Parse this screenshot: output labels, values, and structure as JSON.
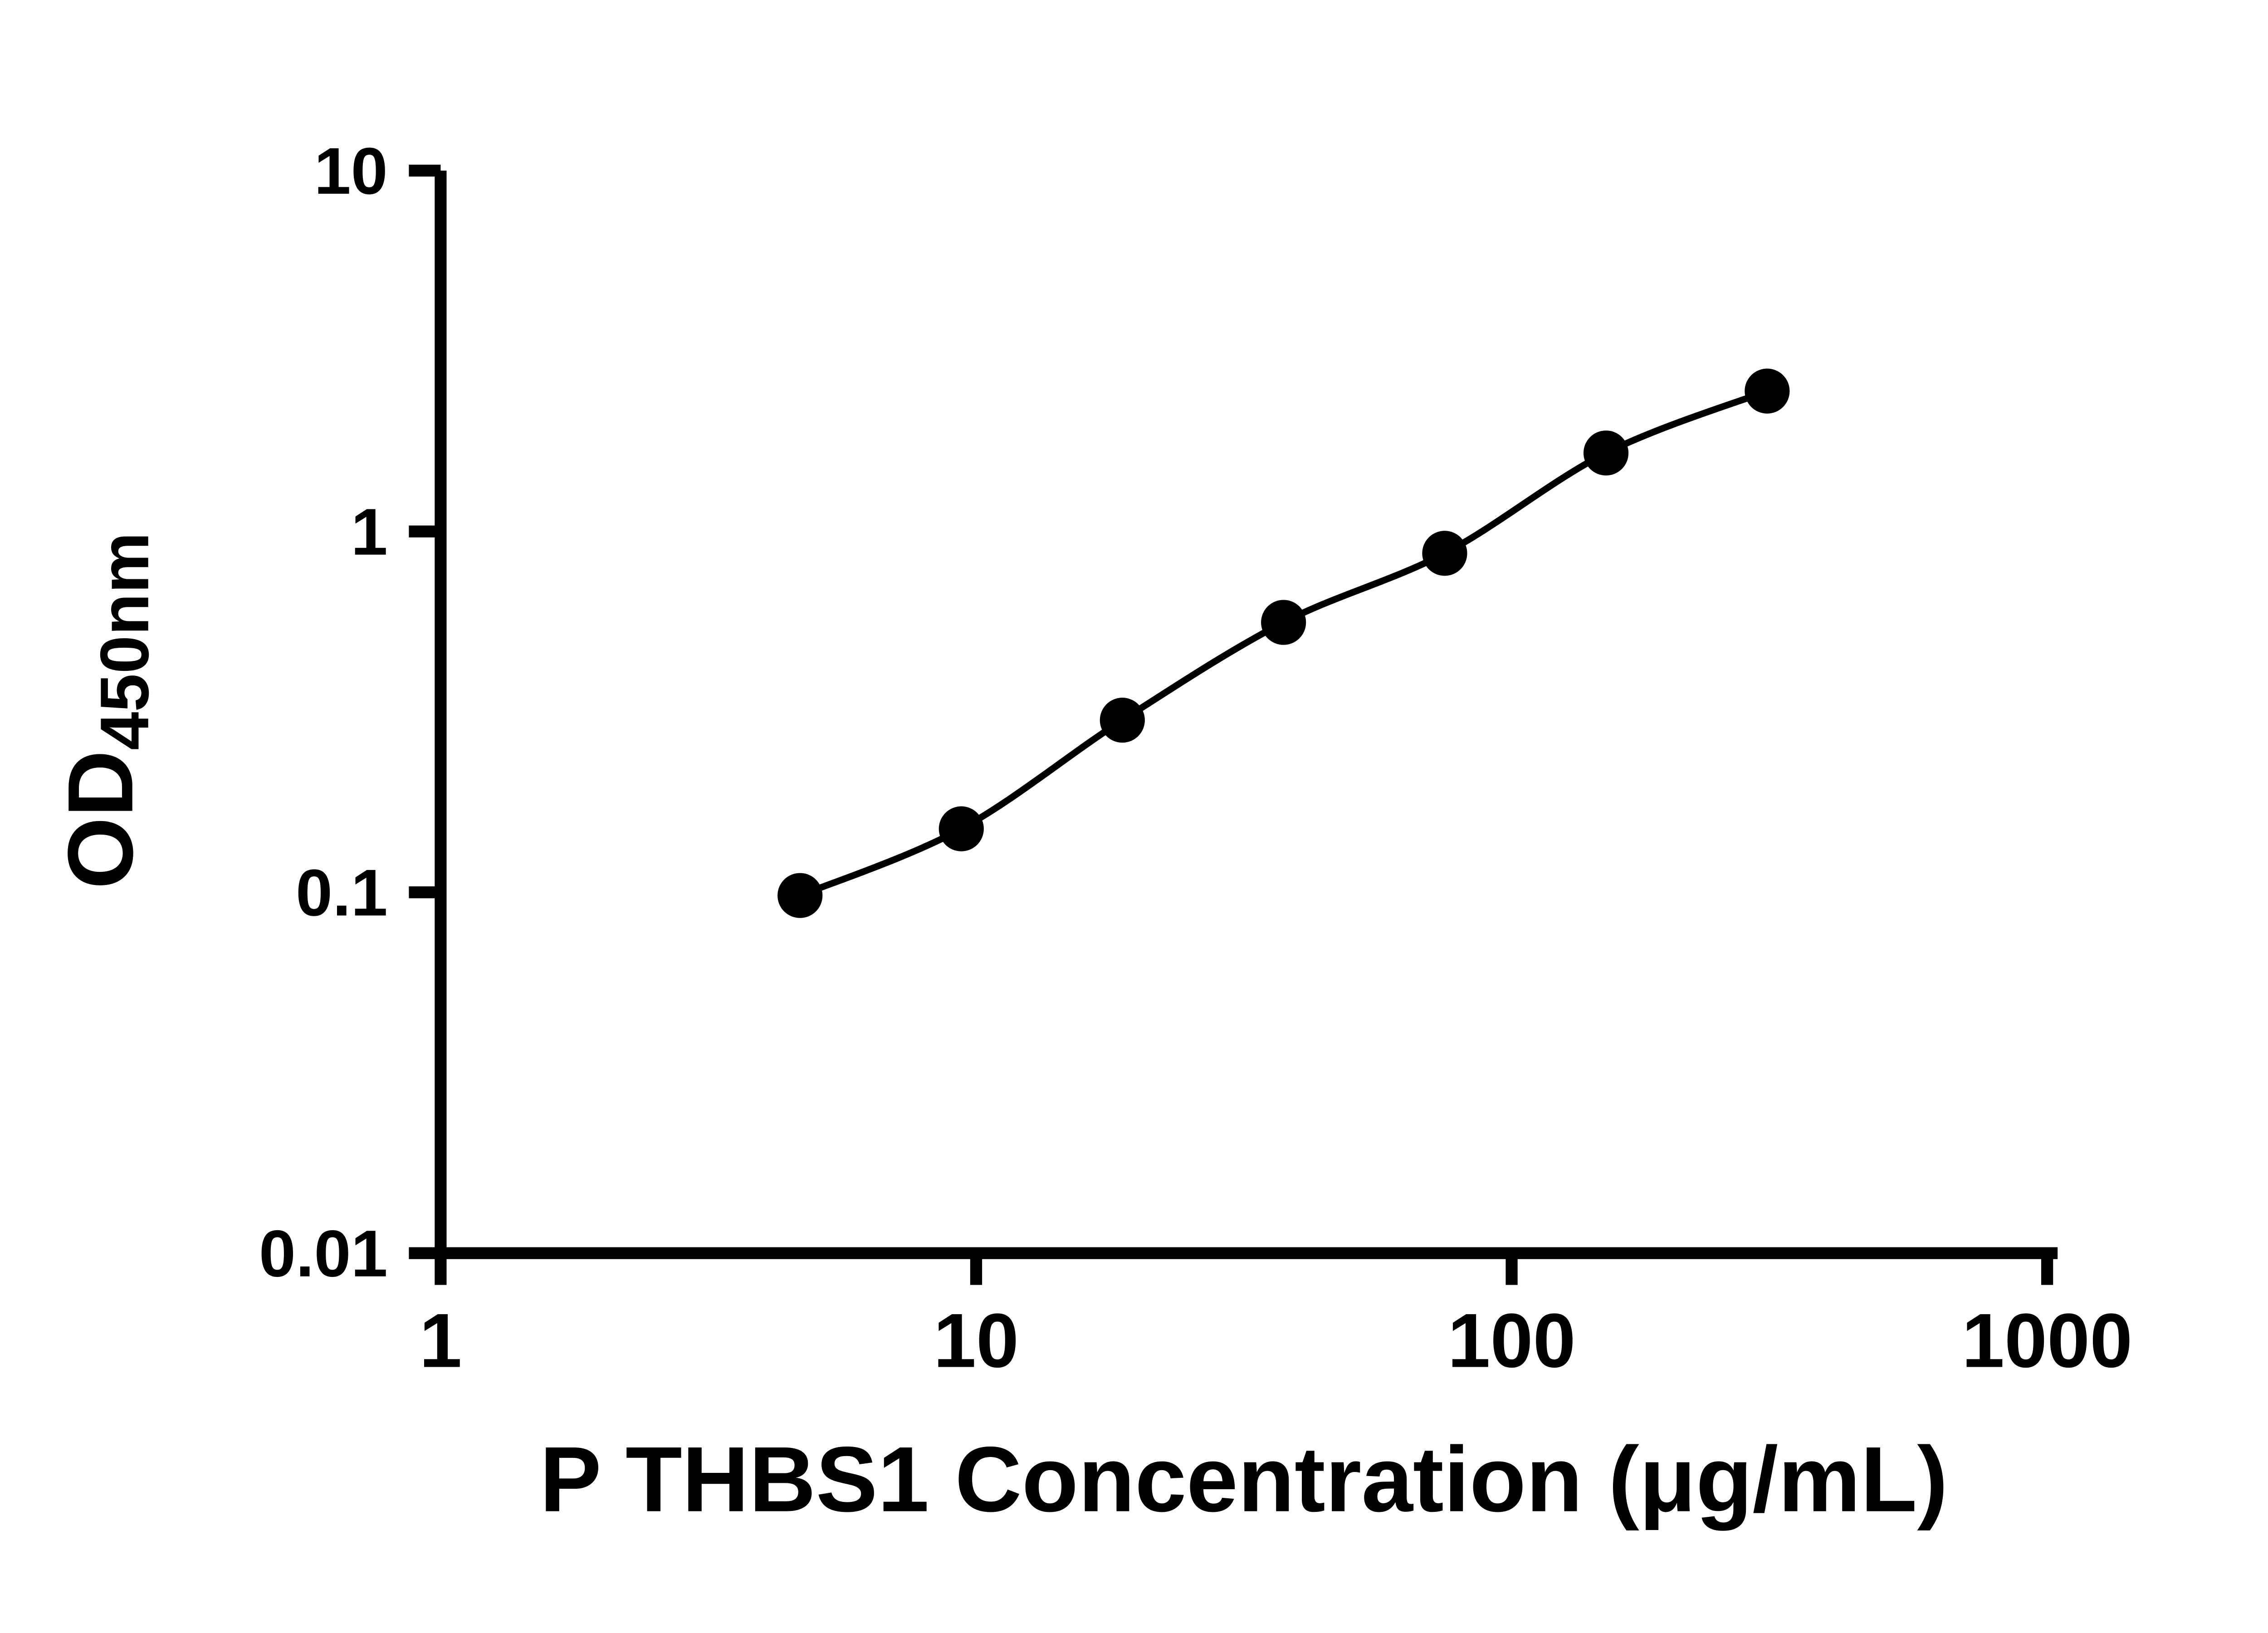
{
  "chart_data": {
    "type": "scatter",
    "title": "",
    "xlabel": "P THBS1 Concentration (μg/mL)",
    "ylabel_main": "OD",
    "ylabel_sub": "450nm",
    "xscale": "log",
    "yscale": "log",
    "xlim": [
      1,
      1000
    ],
    "ylim": [
      0.01,
      10
    ],
    "x_ticks": [
      1,
      10,
      100,
      1000
    ],
    "x_tick_labels": [
      "1",
      "10",
      "100",
      "1000"
    ],
    "y_ticks": [
      0.01,
      0.1,
      1,
      10
    ],
    "y_tick_labels": [
      "0.01",
      "0.1",
      "1",
      "10"
    ],
    "x": [
      4.69,
      9.38,
      18.75,
      37.5,
      75,
      150,
      300
    ],
    "y": [
      0.098,
      0.15,
      0.3,
      0.56,
      0.87,
      1.65,
      2.45
    ],
    "marker_color": "#000000",
    "line_color": "#000000",
    "background_color": "#ffffff",
    "grid": "off",
    "legend": "none"
  }
}
